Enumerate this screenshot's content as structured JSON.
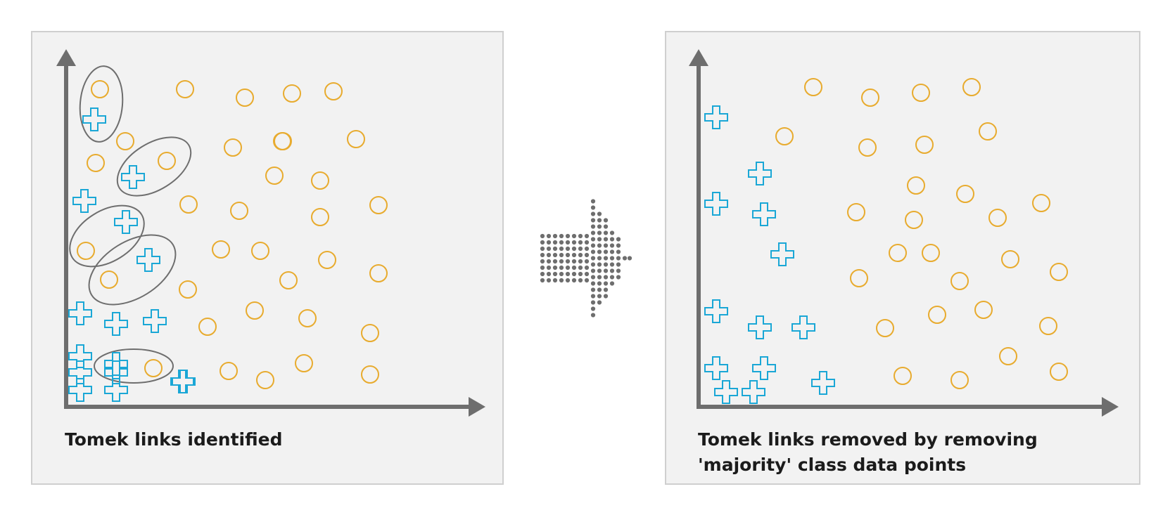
{
  "panels": [
    {
      "id": "before",
      "caption": "Tomek links identified",
      "points": {
        "minority": [
          [
            44,
            375
          ],
          [
            96,
            334
          ],
          [
            24,
            264
          ],
          [
            83,
            225
          ],
          [
            114,
            179
          ],
          [
            22,
            118
          ],
          [
            73,
            97
          ],
          [
            126,
            93
          ],
          [
            22,
            62
          ],
          [
            73,
            59
          ],
          [
            165,
            32
          ],
          [
            73,
            21
          ],
          [
            22,
            20
          ],
          [
            73,
            -7
          ],
          [
            22,
            -18
          ],
          [
            73,
            -18
          ]
        ],
        "majority": [
          [
            50,
            403
          ],
          [
            171,
            403
          ],
          [
            260,
            386
          ],
          [
            327,
            403
          ],
          [
            385,
            405
          ],
          [
            80,
            345
          ],
          [
            237,
            331
          ],
          [
            316,
            346
          ],
          [
            404,
            336
          ],
          [
            144,
            302
          ],
          [
            30,
            308
          ],
          [
            301,
            266
          ],
          [
            363,
            258
          ],
          [
            174,
            255
          ],
          [
            256,
            246
          ],
          [
            364,
            225
          ],
          [
            525,
            246
          ],
          [
            218,
            183
          ],
          [
            275,
            181
          ],
          [
            472,
            172
          ],
          [
            29,
            163
          ],
          [
            67,
            145
          ],
          [
            308,
            132
          ],
          [
            169,
            133
          ],
          [
            453,
            153
          ],
          [
            357,
            118
          ],
          [
            522,
            137
          ],
          [
            260,
            89
          ],
          [
            420,
            92
          ],
          [
            200,
            54
          ],
          [
            526,
            72
          ],
          [
            125,
            36
          ],
          [
            235,
            36
          ],
          [
            310,
            28
          ],
          [
            431,
            35
          ],
          [
            527,
            21
          ],
          [
            427,
            20
          ]
        ]
      },
      "links": [
        [
          50,
          403,
          73,
          334
        ],
        [
          80,
          345,
          126,
          93
        ],
        [
          71,
          253,
          171,
          261
        ],
        [
          114,
          179,
          176,
          274
        ],
        [
          73,
          97,
          73,
          105
        ],
        [
          85,
          70,
          100,
          40
        ]
      ]
    },
    {
      "id": "after",
      "caption": "Tomek links removed by removing 'majority' class data points",
      "points": {
        "minority": [
          [
            28,
            340
          ],
          [
            127,
            255
          ],
          [
            28,
            223
          ],
          [
            124,
            245
          ],
          [
            136,
            170
          ],
          [
            150,
            90
          ],
          [
            28,
            110
          ],
          [
            64,
            90
          ],
          [
            140,
            90
          ],
          [
            20,
            40
          ],
          [
            62,
            40
          ],
          [
            180,
            10
          ],
          [
            28,
            40
          ],
          [
            48,
            -10
          ],
          [
            76,
            -10
          ],
          [
            133,
            14
          ]
        ]
      },
      "links": []
    }
  ]
}
